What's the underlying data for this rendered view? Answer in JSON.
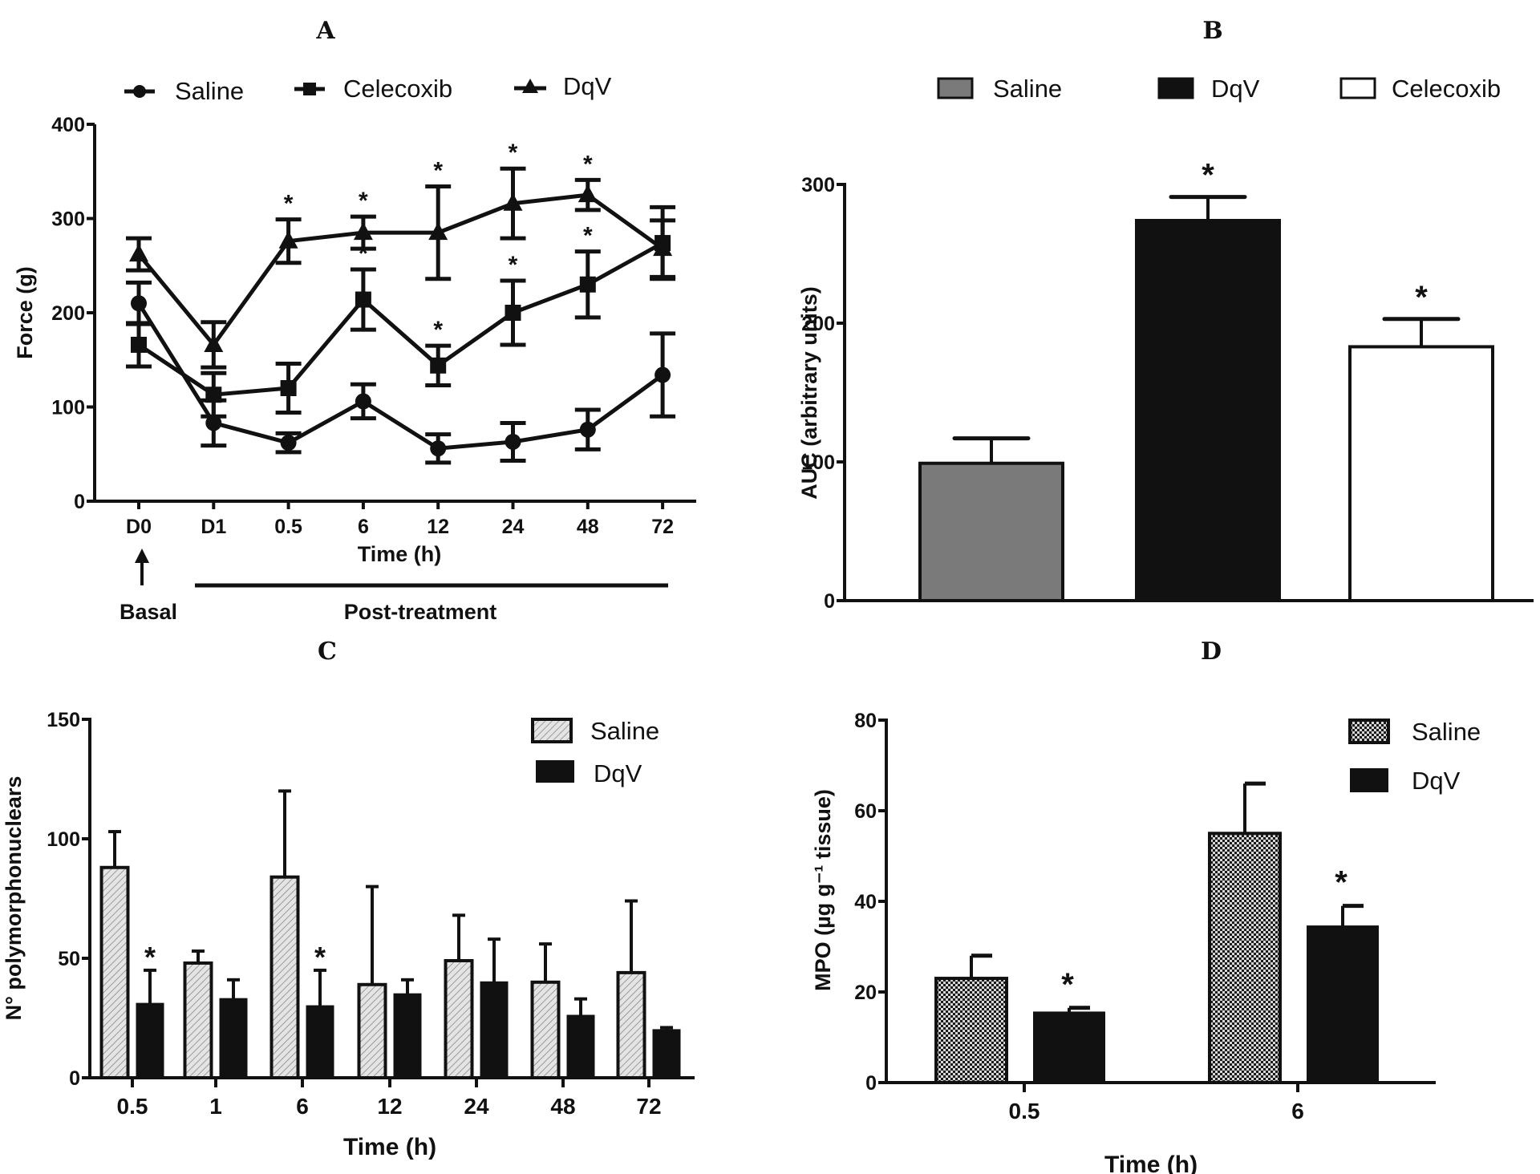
{
  "chart_data": [
    {
      "panel": "A",
      "type": "line",
      "title": "A",
      "xlabel": "Time (h)",
      "ylabel": "Force (g)",
      "ylim": [
        0,
        400
      ],
      "yticks": [
        0,
        100,
        200,
        300,
        400
      ],
      "categories": [
        "D0",
        "D1",
        "0.5",
        "6",
        "12",
        "24",
        "48",
        "72"
      ],
      "legend_position": "top",
      "annotations": {
        "basal_label": "Basal",
        "post_label": "Post-treatment"
      },
      "series": [
        {
          "name": "Saline",
          "marker": "circle",
          "values": [
            210,
            83,
            62,
            106,
            56,
            63,
            76,
            134
          ],
          "errors": [
            22,
            24,
            10,
            18,
            15,
            20,
            21,
            44
          ],
          "significant": [
            false,
            false,
            false,
            false,
            false,
            false,
            false,
            false
          ]
        },
        {
          "name": "Celecoxib",
          "marker": "square",
          "values": [
            166,
            113,
            120,
            214,
            144,
            200,
            230,
            274
          ],
          "errors": [
            23,
            23,
            26,
            32,
            21,
            34,
            35,
            38
          ],
          "significant": [
            false,
            false,
            false,
            true,
            true,
            true,
            true,
            false
          ]
        },
        {
          "name": "DqV",
          "marker": "triangle",
          "values": [
            262,
            166,
            276,
            285,
            285,
            316,
            325,
            268
          ],
          "errors": [
            17,
            24,
            23,
            17,
            49,
            37,
            16,
            30
          ],
          "significant": [
            false,
            false,
            true,
            true,
            true,
            true,
            true,
            false
          ]
        }
      ]
    },
    {
      "panel": "B",
      "type": "bar",
      "title": "B",
      "xlabel": "",
      "ylabel": "AUC (arbitrary units)",
      "ylim": [
        0,
        300
      ],
      "yticks": [
        0,
        100,
        200,
        300
      ],
      "legend_position": "top",
      "categories": [
        "Saline",
        "DqV",
        "Celecoxib"
      ],
      "values": [
        99,
        274,
        183
      ],
      "errors": [
        18,
        17,
        20
      ],
      "significant": [
        false,
        true,
        true
      ],
      "colors": [
        "#7a7a7a",
        "#111111",
        "#ffffff"
      ]
    },
    {
      "panel": "C",
      "type": "bar",
      "title": "C",
      "xlabel": "Time (h)",
      "ylabel": "N° polymorphonuclears",
      "ylim": [
        0,
        150
      ],
      "yticks": [
        0,
        50,
        100,
        150
      ],
      "legend_position": "top-right",
      "categories": [
        "0.5",
        "1",
        "6",
        "12",
        "24",
        "48",
        "72"
      ],
      "series": [
        {
          "name": "Saline",
          "pattern": "hatched",
          "values": [
            88,
            48,
            84,
            39,
            49,
            40,
            44
          ],
          "errors": [
            15,
            5,
            36,
            41,
            19,
            16,
            30
          ],
          "significant": [
            false,
            false,
            false,
            false,
            false,
            false,
            false
          ]
        },
        {
          "name": "DqV",
          "pattern": "solid",
          "values": [
            31,
            33,
            30,
            35,
            40,
            26,
            20
          ],
          "errors": [
            14,
            8,
            15,
            6,
            18,
            7,
            1
          ],
          "significant": [
            true,
            false,
            true,
            false,
            false,
            false,
            false
          ]
        }
      ]
    },
    {
      "panel": "D",
      "type": "bar",
      "title": "D",
      "xlabel": "Time (h)",
      "ylabel": "MPO (µg g⁻¹ tissue)",
      "ylim": [
        0,
        80
      ],
      "yticks": [
        0,
        20,
        40,
        60,
        80
      ],
      "legend_position": "top-right",
      "categories": [
        "0.5",
        "6"
      ],
      "series": [
        {
          "name": "Saline",
          "pattern": "dotted",
          "values": [
            23,
            55
          ],
          "errors": [
            5,
            11
          ],
          "significant": [
            false,
            false
          ]
        },
        {
          "name": "DqV",
          "pattern": "solid",
          "values": [
            15.5,
            34.5
          ],
          "errors": [
            1,
            4.5
          ],
          "significant": [
            true,
            true
          ]
        }
      ]
    }
  ],
  "significance_symbol": "*"
}
